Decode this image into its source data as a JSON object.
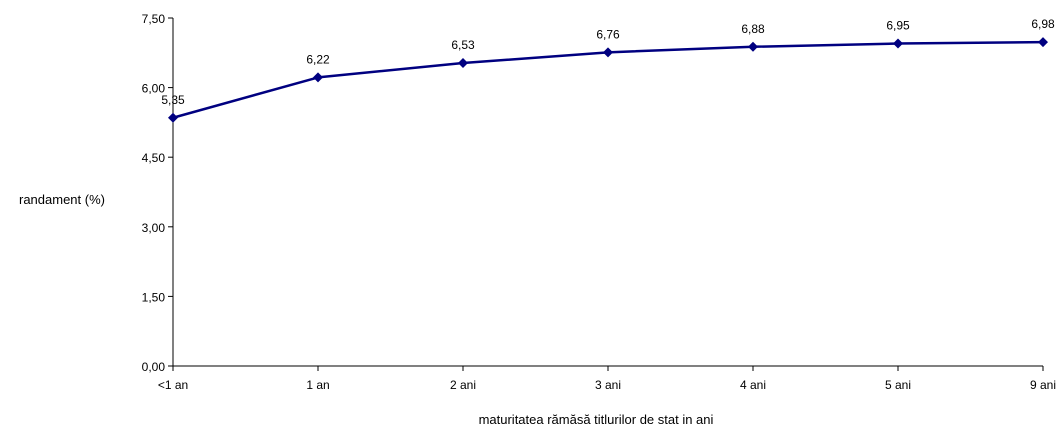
{
  "chart_data": {
    "type": "line",
    "title": "",
    "xlabel": "maturitatea rămăsă titlurilor de stat in ani",
    "ylabel": "randament (%)",
    "categories": [
      "<1 an",
      "1 an",
      "2 ani",
      "3 ani",
      "4 ani",
      "5 ani",
      "9 ani"
    ],
    "series": [
      {
        "values": [
          5.35,
          6.22,
          6.53,
          6.76,
          6.88,
          6.95,
          6.98
        ],
        "value_labels": [
          "5,35",
          "6,22",
          "6,53",
          "6,76",
          "6,88",
          "6,95",
          "6,98"
        ],
        "color": "#000080",
        "marker": "diamond"
      }
    ],
    "y_ticks": [
      0,
      1.5,
      3,
      4.5,
      6,
      7.5
    ],
    "y_tick_labels": [
      "0,00",
      "1,50",
      "3,00",
      "4,50",
      "6,00",
      "7,50"
    ],
    "ylim": [
      0,
      7.5
    ],
    "grid": false,
    "legend": "none"
  }
}
